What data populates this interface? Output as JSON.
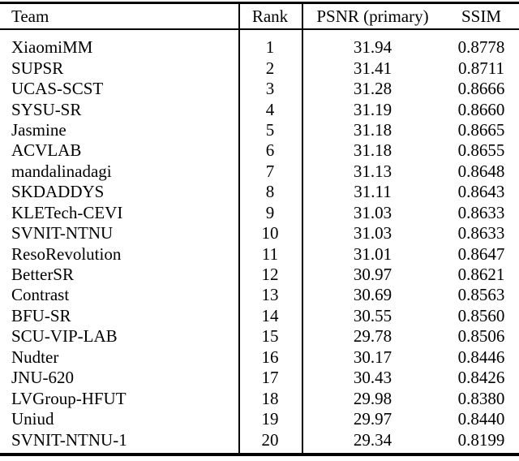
{
  "table": {
    "columns": [
      "Team",
      "Rank",
      "PSNR (primary)",
      "SSIM"
    ],
    "rows": [
      {
        "team": "XiaomiMM",
        "rank": "1",
        "psnr": "31.94",
        "ssim": "0.8778"
      },
      {
        "team": "SUPSR",
        "rank": "2",
        "psnr": "31.41",
        "ssim": "0.8711"
      },
      {
        "team": "UCAS-SCST",
        "rank": "3",
        "psnr": "31.28",
        "ssim": "0.8666"
      },
      {
        "team": "SYSU-SR",
        "rank": "4",
        "psnr": "31.19",
        "ssim": "0.8660"
      },
      {
        "team": "Jasmine",
        "rank": "5",
        "psnr": "31.18",
        "ssim": "0.8665"
      },
      {
        "team": "ACVLAB",
        "rank": "6",
        "psnr": "31.18",
        "ssim": "0.8655"
      },
      {
        "team": "mandalinadagi",
        "rank": "7",
        "psnr": "31.13",
        "ssim": "0.8648"
      },
      {
        "team": "SKDADDYS",
        "rank": "8",
        "psnr": "31.11",
        "ssim": "0.8643"
      },
      {
        "team": "KLETech-CEVI",
        "rank": "9",
        "psnr": "31.03",
        "ssim": "0.8633"
      },
      {
        "team": "SVNIT-NTNU",
        "rank": "10",
        "psnr": "31.03",
        "ssim": "0.8633"
      },
      {
        "team": "ResoRevolution",
        "rank": "11",
        "psnr": "31.01",
        "ssim": "0.8647"
      },
      {
        "team": "BetterSR",
        "rank": "12",
        "psnr": "30.97",
        "ssim": "0.8621"
      },
      {
        "team": "Contrast",
        "rank": "13",
        "psnr": "30.69",
        "ssim": "0.8563"
      },
      {
        "team": "BFU-SR",
        "rank": "14",
        "psnr": "30.55",
        "ssim": "0.8560"
      },
      {
        "team": "SCU-VIP-LAB",
        "rank": "15",
        "psnr": "29.78",
        "ssim": "0.8506"
      },
      {
        "team": "Nudter",
        "rank": "16",
        "psnr": "30.17",
        "ssim": "0.8446"
      },
      {
        "team": "JNU-620",
        "rank": "17",
        "psnr": "30.43",
        "ssim": "0.8426"
      },
      {
        "team": "LVGroup-HFUT",
        "rank": "18",
        "psnr": "29.98",
        "ssim": "0.8380"
      },
      {
        "team": "Uniud",
        "rank": "19",
        "psnr": "29.97",
        "ssim": "0.8440"
      },
      {
        "team": "SVNIT-NTNU-1",
        "rank": "20",
        "psnr": "29.34",
        "ssim": "0.8199"
      }
    ]
  },
  "chart_data": {
    "type": "table",
    "title": "",
    "columns": [
      "Team",
      "Rank",
      "PSNR (primary)",
      "SSIM"
    ],
    "rows": [
      [
        "XiaomiMM",
        1,
        31.94,
        0.8778
      ],
      [
        "SUPSR",
        2,
        31.41,
        0.8711
      ],
      [
        "UCAS-SCST",
        3,
        31.28,
        0.8666
      ],
      [
        "SYSU-SR",
        4,
        31.19,
        0.866
      ],
      [
        "Jasmine",
        5,
        31.18,
        0.8665
      ],
      [
        "ACVLAB",
        6,
        31.18,
        0.8655
      ],
      [
        "mandalinadagi",
        7,
        31.13,
        0.8648
      ],
      [
        "SKDADDYS",
        8,
        31.11,
        0.8643
      ],
      [
        "KLETech-CEVI",
        9,
        31.03,
        0.8633
      ],
      [
        "SVNIT-NTNU",
        10,
        31.03,
        0.8633
      ],
      [
        "ResoRevolution",
        11,
        31.01,
        0.8647
      ],
      [
        "BetterSR",
        12,
        30.97,
        0.8621
      ],
      [
        "Contrast",
        13,
        30.69,
        0.8563
      ],
      [
        "BFU-SR",
        14,
        30.55,
        0.856
      ],
      [
        "SCU-VIP-LAB",
        15,
        29.78,
        0.8506
      ],
      [
        "Nudter",
        16,
        30.17,
        0.8446
      ],
      [
        "JNU-620",
        17,
        30.43,
        0.8426
      ],
      [
        "LVGroup-HFUT",
        18,
        29.98,
        0.838
      ],
      [
        "Uniud",
        19,
        29.97,
        0.844
      ],
      [
        "SVNIT-NTNU-1",
        20,
        29.34,
        0.8199
      ]
    ]
  },
  "style": {
    "rule_color": "#000000",
    "background": "#ffffff",
    "text_color": "#000000"
  }
}
